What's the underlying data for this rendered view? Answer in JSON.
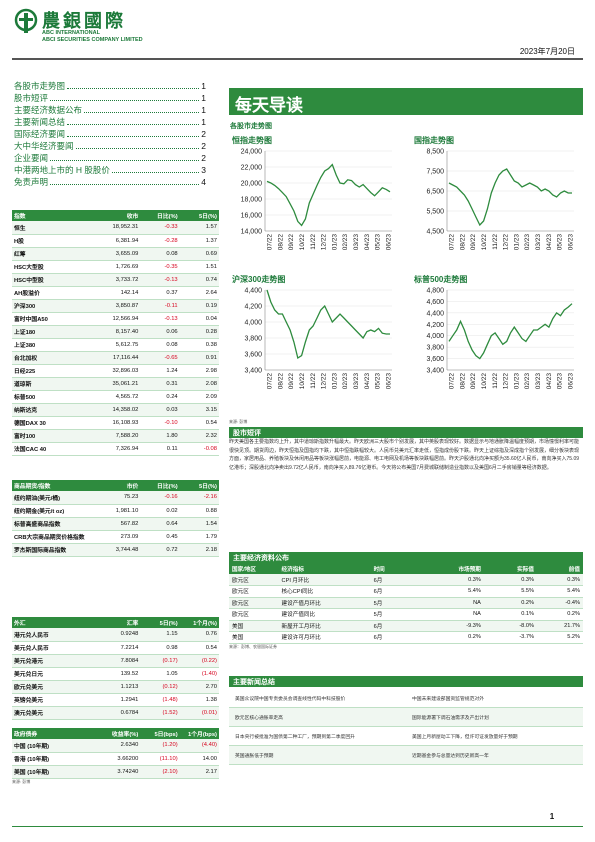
{
  "header": {
    "brand_cn": "農銀國際",
    "brand_en1": "ABC INTERNATIONAL",
    "brand_en2": "ABCI SECURITIES COMPANY LIMITED",
    "date": "2023年7月20日"
  },
  "toc": [
    {
      "label": "各股市走势图",
      "page": "1"
    },
    {
      "label": "股市短评",
      "page": "1"
    },
    {
      "label": "主要经济数据公布",
      "page": "1"
    },
    {
      "label": "主要新闻总结",
      "page": "1"
    },
    {
      "label": "国际经济要闻",
      "page": "2"
    },
    {
      "label": "大中华经济要闻",
      "page": "2"
    },
    {
      "label": "企业要闻",
      "page": "2"
    },
    {
      "label": "中港两地上市的 H 股股价",
      "page": "3"
    },
    {
      "label": "免责声明",
      "page": "4"
    }
  ],
  "index_table": {
    "headers": [
      "指数",
      "收市",
      "日比(%)",
      "5日(%)"
    ],
    "rows": [
      [
        "恒生",
        "18,952.31",
        "-0.33",
        "1.57"
      ],
      [
        "H股",
        "6,381.94",
        "-0.28",
        "1.37"
      ],
      [
        "红筹",
        "3,655.09",
        "0.08",
        "0.69"
      ],
      [
        "HSC大型股",
        "1,726.69",
        "-0.35",
        "1.51"
      ],
      [
        "HSC中型股",
        "3,733.72",
        "-0.13",
        "0.74"
      ],
      [
        "AH股溢价",
        "142.14",
        "0.37",
        "2.64"
      ],
      [
        "沪深300",
        "3,850.87",
        "-0.11",
        "0.19"
      ],
      [
        "富时中国A50",
        "12,566.94",
        "-0.13",
        "0.04"
      ],
      [
        "上证180",
        "8,157.40",
        "0.06",
        "0.28"
      ],
      [
        "上证380",
        "5,612.75",
        "0.08",
        "0.38"
      ],
      [
        "台北加权",
        "17,116.44",
        "-0.65",
        "0.91"
      ],
      [
        "日经225",
        "32,896.03",
        "1.24",
        "2.98"
      ],
      [
        "道琼斯",
        "35,061.21",
        "0.31",
        "2.08"
      ],
      [
        "标普500",
        "4,565.72",
        "0.24",
        "2.09"
      ],
      [
        "纳斯达克",
        "14,358.02",
        "0.03",
        "3.15"
      ],
      [
        "德国DAX 30",
        "16,108.93",
        "-0.10",
        "0.54"
      ],
      [
        "富时100",
        "7,588.20",
        "1.80",
        "2.32"
      ],
      [
        "法国CAC 40",
        "7,326.94",
        "0.11",
        "-0.08"
      ]
    ]
  },
  "commodity_table": {
    "headers": [
      "商品期货/指数",
      "市价",
      "日比(%)",
      "5日(%)"
    ],
    "rows": [
      [
        "纽约期油(美元/桶)",
        "75.23",
        "-0.16",
        "-2.16"
      ],
      [
        "纽约期金(美元/t oz)",
        "1,981.10",
        "0.02",
        "0.88"
      ],
      [
        "标普高盛商品指数",
        "567.82",
        "0.64",
        "1.54"
      ],
      [
        "CRB大宗商品期货价格指数",
        "273.09",
        "0.45",
        "1.79"
      ],
      [
        "罗杰斯国际商品指数",
        "3,744.48",
        "0.72",
        "2.18"
      ]
    ]
  },
  "fx_table": {
    "headers": [
      "外汇",
      "汇率",
      "5日(%)",
      "1个月(%)"
    ],
    "rows": [
      [
        "港元兑人民币",
        "0.9248",
        "1.15",
        "0.76"
      ],
      [
        "美元兑人民币",
        "7.2214",
        "0.98",
        "0.54"
      ],
      [
        "美元兑港元",
        "7.8084",
        "(0.17)",
        "(0.22)"
      ],
      [
        "美元兑日元",
        "139.52",
        "1.05",
        "(1.40)"
      ],
      [
        "欧元兑美元",
        "1.1213",
        "(0.12)",
        "2.70"
      ],
      [
        "英镑兑美元",
        "1.2941",
        "(1.48)",
        "1.38"
      ],
      [
        "澳元兑美元",
        "0.6784",
        "(1.52)",
        "(0.01)"
      ]
    ]
  },
  "bond_table": {
    "headers": [
      "政府债券",
      "收益率(%)",
      "5日(bps)",
      "1个月(bps)"
    ],
    "rows": [
      [
        "中国 (10年期)",
        "2.6340",
        "(1.20)",
        "(4.40)"
      ],
      [
        "香港 (10年期)",
        "3.66200",
        "(11.10)",
        "14.00"
      ],
      [
        "美国 (10年期)",
        "3.74240",
        "(2.10)",
        "2.17"
      ]
    ]
  },
  "source_bloomberg": "来源: 彭博",
  "daily_title": "每天导读",
  "chart_section_label": "各股市走势图",
  "chart_data": [
    {
      "type": "line",
      "title": "恒指走势图",
      "ylim": [
        14000,
        24000
      ],
      "yticks": [
        "24,000",
        "22,000",
        "20,000",
        "18,000",
        "16,000",
        "14,000"
      ],
      "xticks": [
        "07/22",
        "08/22",
        "09/22",
        "10/22",
        "11/22",
        "12/22",
        "01/23",
        "02/23",
        "03/23",
        "04/23",
        "05/23",
        "06/23"
      ],
      "values": [
        20200,
        20000,
        19700,
        19300,
        18800,
        18300,
        17400,
        16500,
        15200,
        14700,
        15500,
        17500,
        18600,
        19700,
        20700,
        21500,
        21800,
        22300,
        21000,
        20000,
        19900,
        20400,
        20300,
        19800,
        19500,
        19800,
        19300,
        18800,
        18400,
        18900,
        19400,
        19200,
        18900
      ]
    },
    {
      "type": "line",
      "title": "国指走势图",
      "ylim": [
        4500,
        8500
      ],
      "yticks": [
        "8,500",
        "7,500",
        "6,500",
        "5,500",
        "4,500"
      ],
      "xticks": [
        "07/22",
        "08/22",
        "09/22",
        "10/22",
        "11/22",
        "12/22",
        "01/23",
        "02/23",
        "03/23",
        "04/23",
        "05/23",
        "06/23"
      ],
      "values": [
        6900,
        6800,
        6700,
        6500,
        6300,
        6000,
        5600,
        5200,
        4800,
        5000,
        5600,
        6400,
        6900,
        7300,
        7500,
        7600,
        7300,
        7000,
        6900,
        6700,
        6800,
        6900,
        6800,
        6700,
        6500,
        6600,
        6500,
        6300,
        6200,
        6400,
        6500,
        6400,
        6400
      ]
    },
    {
      "type": "line",
      "title": "沪深300走势图",
      "ylim": [
        3400,
        4400
      ],
      "yticks": [
        "4,400",
        "4,200",
        "4,000",
        "3,800",
        "3,600",
        "3,400"
      ],
      "xticks": [
        "07/22",
        "08/22",
        "09/22",
        "10/22",
        "11/22",
        "12/22",
        "01/23",
        "02/23",
        "03/23",
        "04/23",
        "05/23",
        "06/23"
      ],
      "values": [
        4400,
        4250,
        4150,
        4100,
        4100,
        4000,
        3900,
        3750,
        3550,
        3580,
        3750,
        3900,
        3950,
        4050,
        4150,
        4200,
        4100,
        4000,
        4050,
        4100,
        4050,
        4000,
        3950,
        3900,
        3850,
        3800,
        3880,
        3900,
        3880,
        3920,
        3860,
        3850,
        3850
      ]
    },
    {
      "type": "line",
      "title": "标普500走势图",
      "ylim": [
        3400,
        4800
      ],
      "yticks": [
        "4,800",
        "4,600",
        "4,400",
        "4,200",
        "4,000",
        "3,800",
        "3,600",
        "3,400"
      ],
      "xticks": [
        "07/22",
        "08/22",
        "09/22",
        "10/22",
        "11/22",
        "12/22",
        "01/23",
        "02/23",
        "03/23",
        "04/23",
        "05/23",
        "06/23"
      ],
      "values": [
        3900,
        4000,
        4100,
        4250,
        4100,
        3900,
        3750,
        3650,
        3600,
        3700,
        3850,
        4000,
        4050,
        3950,
        3850,
        3900,
        4050,
        4150,
        4050,
        3950,
        3900,
        4000,
        4100,
        4100,
        4150,
        4200,
        4150,
        4300,
        4400,
        4350,
        4450,
        4500,
        4560
      ]
    }
  ],
  "market_comment_title": "股市短评",
  "market_comment": "昨天美国各主要指数均上升，其中道琼斯指数升幅最大。昨天欧洲三大股市个别发展，其中英股表现较好。数据显示与地通胀降温幅度预期，市场憧憬利率可能很快见顶。期货周边，昨天恒指及国指均下跌，其中恒指跌幅较大。人民币兑美元汇率走低，恒指成份股下跌。昨天上证综指及深成指个别发展，细分板块表现方面，家居用品、养殖板块及休闲用品等板块涨幅居前，电能源、电工电网及机场等板块跌幅居前。昨天沪股通北向净买额为35.60亿人民币，南向净买入75.09亿港币；深股通北向净卖出9.72亿人民币，南向净买入89.76亿港币。今天将公布美国7月费城联储制造业指数以及美国6月二手房销量等经济数据。",
  "econ_title": "主要经济资料公布",
  "econ_table": {
    "headers": [
      "国家/地区",
      "经济指标",
      "时间",
      "市场预期",
      "实际值",
      "前值"
    ],
    "rows": [
      [
        "欧元区",
        "CPI 月环比",
        "6月",
        "0.3%",
        "0.3%",
        "0.3%"
      ],
      [
        "欧元区",
        "核心CPI同比",
        "6月",
        "5.4%",
        "5.5%",
        "5.4%"
      ],
      [
        "欧元区",
        "建设产值月环比",
        "5月",
        "NA",
        "0.2%",
        "-0.4%"
      ],
      [
        "欧元区",
        "建设产值同比",
        "5月",
        "NA",
        "0.1%",
        "0.2%"
      ],
      [
        "美国",
        "新屋开工月环比",
        "6月",
        "-9.3%",
        "-8.0%",
        "21.7%"
      ],
      [
        "美国",
        "建设许可月环比",
        "6月",
        "0.2%",
        "-3.7%",
        "5.2%"
      ]
    ]
  },
  "econ_source": "来源：彭博、农银国际证券",
  "news_title": "主要新闻总结",
  "news": [
    [
      "美国众议院中国专责委员会调查线性代码中科技股价",
      "中国未来建设部国资监管规范对外"
    ],
    [
      "欧元区核心通胀率走高",
      "国际能源署下调石油需求及产出计划"
    ],
    [
      "日本央行被批准为国债第二种工厂，预期到第二季度回升",
      "美国上月新屋动工下降，但许可证发放量好于预期"
    ],
    [
      "英国通胀低于预期",
      "近期基金参与总量达到历史新高一年"
    ]
  ],
  "page_number": "1"
}
